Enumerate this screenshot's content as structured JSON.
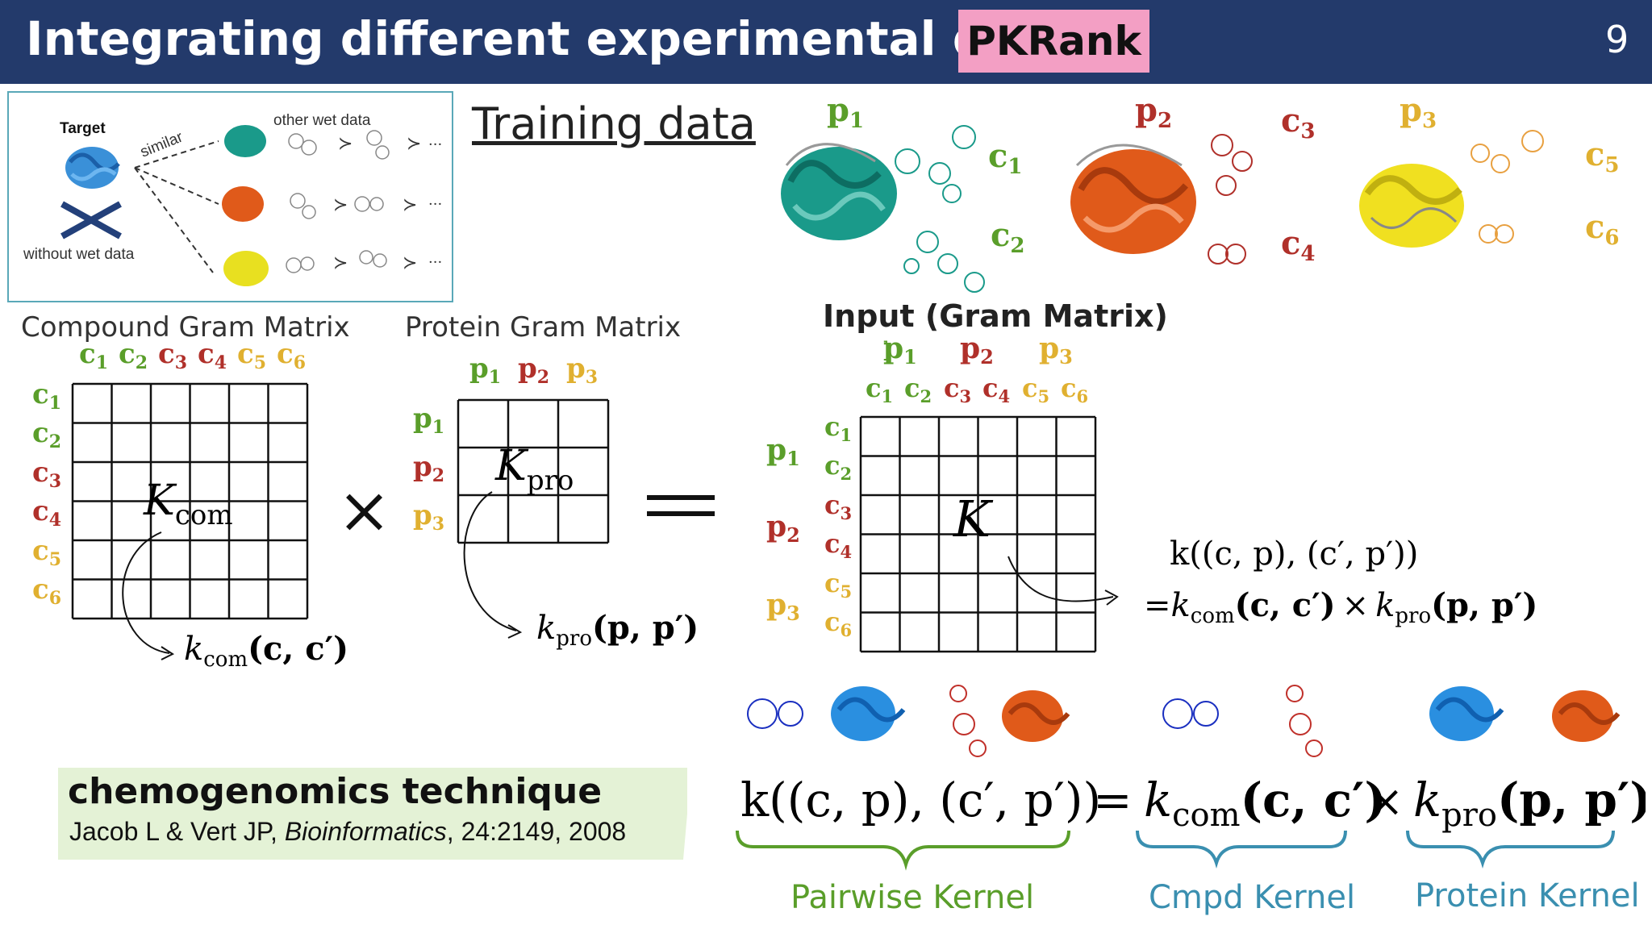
{
  "header": {
    "title": "Integrating different experimental data",
    "badge": "PKRank",
    "page_number": "9"
  },
  "training_panel": {
    "target": "Target",
    "similar": "similar",
    "other_wet_data": "other wet data",
    "without_wet_data": "without wet data",
    "order_symbol": "≻",
    "ellipsis": "···"
  },
  "training_title": "Training data",
  "symbols": {
    "c": "c",
    "p": "p",
    "sub": [
      "1",
      "2",
      "3",
      "4",
      "5",
      "6"
    ]
  },
  "colors": {
    "green": "#5a9e2a",
    "red": "#b0302a",
    "yellow": "#e0b030",
    "blue_label": "#3a8fb0",
    "green_label": "#5a9e2a",
    "teal_protein": "#1a9a8a",
    "orange_protein": "#e05a1a",
    "yellow_protein": "#f0e020"
  },
  "labels": {
    "compound_gram": "Compound Gram Matrix",
    "protein_gram": "Protein Gram Matrix",
    "input_gram": "Input (Gram Matrix)",
    "K_com": "K",
    "K_com_sub": "com",
    "K_pro": "K",
    "K_pro_sub": "pro",
    "K": "K",
    "kcom_expr": "k",
    "kcom_sub": "com",
    "kcom_args": "(c, c′)",
    "kpro_expr": "k",
    "kpro_sub": "pro",
    "kpro_args": "(p, p′)",
    "times": "×",
    "equals": "=",
    "pair_line1": "k((c, p), (c′, p′))",
    "pair_line2_eq": "=",
    "pair_line2_a": "k",
    "pair_line2_a_sub": "com",
    "pair_line2_a_args": "(c, c′)",
    "pair_line2_x": "×",
    "pair_line2_b": "k",
    "pair_line2_b_sub": "pro",
    "pair_line2_b_args": "(p, p′)"
  },
  "chemo": {
    "title": "chemogenomics technique",
    "ref_prefix": "Jacob L & Vert JP, ",
    "ref_journal": "Bioinformatics",
    "ref_suffix": ", 24:2149, 2008"
  },
  "bottom_formula": {
    "lhs": "k((c, p), (c′, p′))",
    "eq": "=",
    "k1": "k",
    "k1_sub": "com",
    "k1_args": "(c, c′)",
    "x": "×",
    "k2": "k",
    "k2_sub": "pro",
    "k2_args": "(p, p′)"
  },
  "kernels": {
    "pairwise": "Pairwise Kernel",
    "cmpd": "Cmpd Kernel",
    "protein": "Protein Kernel"
  }
}
